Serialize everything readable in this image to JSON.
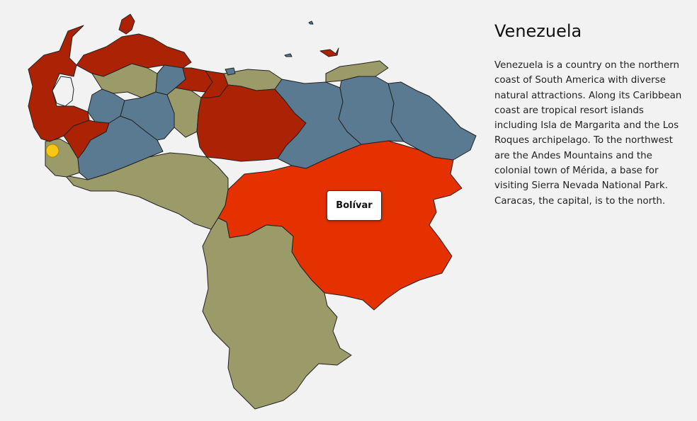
{
  "country": {
    "title": "Venezuela",
    "description": "Venezuela is a country on the northern coast of South America with diverse natural attractions. Along its Caribbean coast are tropical resort islands including Isla de Margarita and the Los Roques archipelago. To the northwest are the Andes Mountains and the colonial town of Mérida, a base for visiting Sierra Nevada National Park. Caracas, the capital, is to the north."
  },
  "tooltip": {
    "label": "Bolívar"
  },
  "colors": {
    "background": "#f2f2f2",
    "olive": "#9b9a69",
    "blue": "#5a7a91",
    "dark_red": "#ac2204",
    "highlight_red": "#e53000",
    "marker": "#f7c617",
    "border": "#222222"
  },
  "marker": {
    "kind": "location-pin-icon"
  }
}
